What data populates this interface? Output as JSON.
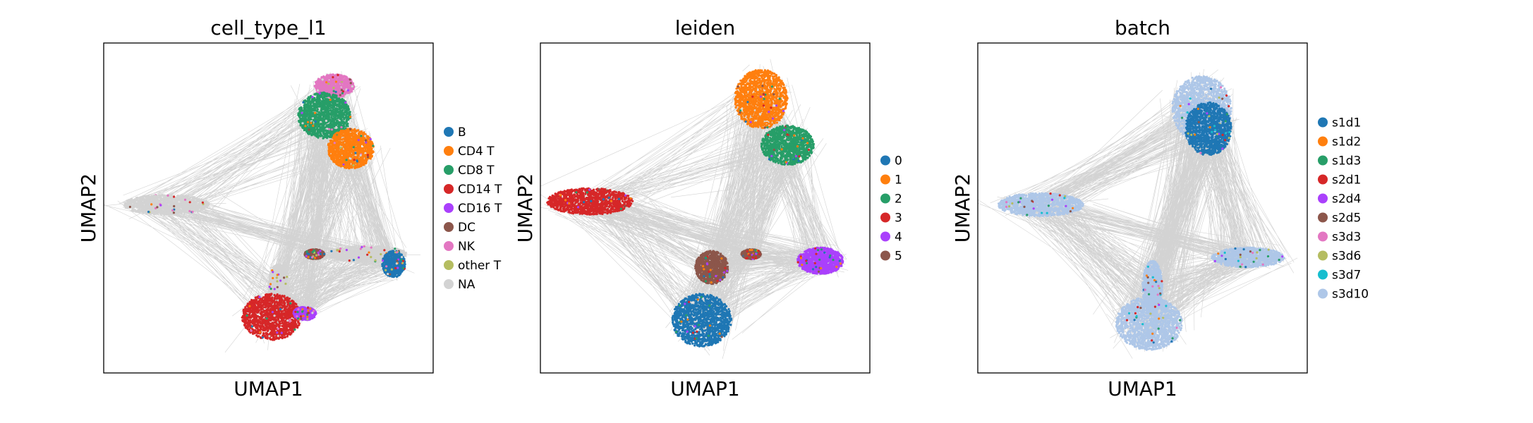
{
  "figure": {
    "layout": "three UMAP embedding panels with graph edges and categorical colouring"
  },
  "chart_data": [
    {
      "type": "scatter",
      "title": "cell_type_l1",
      "xlabel": "UMAP1",
      "ylabel": "UMAP2",
      "ticks": "none",
      "grid": false,
      "legend_position": "right",
      "edge_color": "#808080",
      "legend": [
        {
          "label": "B",
          "color": "#1f77b4"
        },
        {
          "label": "CD4 T",
          "color": "#ff7f0e"
        },
        {
          "label": "CD8 T",
          "color": "#279e68"
        },
        {
          "label": "CD14 T",
          "color": "#d62728"
        },
        {
          "label": "CD16 T",
          "color": "#aa40fc"
        },
        {
          "label": "DC",
          "color": "#8c564b"
        },
        {
          "label": "NK",
          "color": "#e377c2"
        },
        {
          "label": "other T",
          "color": "#b5bd61"
        },
        {
          "label": "NA",
          "color": "#d3d3d3"
        }
      ],
      "clusters": [
        {
          "category": "NK",
          "x": 0.7,
          "y": 0.87,
          "rx": 0.06,
          "ry": 0.035
        },
        {
          "category": "CD8 T",
          "x": 0.67,
          "y": 0.78,
          "rx": 0.08,
          "ry": 0.07
        },
        {
          "category": "CD4 T",
          "x": 0.75,
          "y": 0.68,
          "rx": 0.07,
          "ry": 0.06
        },
        {
          "category": "NA",
          "x": 0.19,
          "y": 0.51,
          "rx": 0.13,
          "ry": 0.03
        },
        {
          "category": "NA",
          "x": 0.8,
          "y": 0.36,
          "rx": 0.12,
          "ry": 0.025
        },
        {
          "category": "B",
          "x": 0.88,
          "y": 0.33,
          "rx": 0.035,
          "ry": 0.04
        },
        {
          "category": "DC",
          "x": 0.64,
          "y": 0.36,
          "rx": 0.03,
          "ry": 0.015
        },
        {
          "category": "NA",
          "x": 0.53,
          "y": 0.26,
          "rx": 0.03,
          "ry": 0.07
        },
        {
          "category": "CD14 T",
          "x": 0.51,
          "y": 0.17,
          "rx": 0.09,
          "ry": 0.07
        },
        {
          "category": "CD16 T",
          "x": 0.61,
          "y": 0.18,
          "rx": 0.035,
          "ry": 0.02
        }
      ]
    },
    {
      "type": "scatter",
      "title": "leiden",
      "xlabel": "UMAP1",
      "ylabel": "UMAP2",
      "ticks": "none",
      "grid": false,
      "legend_position": "right",
      "edge_color": "#808080",
      "legend": [
        {
          "label": "0",
          "color": "#1f77b4"
        },
        {
          "label": "1",
          "color": "#ff7f0e"
        },
        {
          "label": "2",
          "color": "#279e68"
        },
        {
          "label": "3",
          "color": "#d62728"
        },
        {
          "label": "4",
          "color": "#aa40fc"
        },
        {
          "label": "5",
          "color": "#8c564b"
        }
      ],
      "clusters": [
        {
          "category": "1",
          "x": 0.67,
          "y": 0.83,
          "rx": 0.08,
          "ry": 0.09
        },
        {
          "category": "2",
          "x": 0.75,
          "y": 0.69,
          "rx": 0.08,
          "ry": 0.06
        },
        {
          "category": "3",
          "x": 0.15,
          "y": 0.52,
          "rx": 0.13,
          "ry": 0.04
        },
        {
          "category": "5",
          "x": 0.52,
          "y": 0.32,
          "rx": 0.05,
          "ry": 0.05
        },
        {
          "category": "5",
          "x": 0.64,
          "y": 0.36,
          "rx": 0.03,
          "ry": 0.015
        },
        {
          "category": "4",
          "x": 0.85,
          "y": 0.34,
          "rx": 0.07,
          "ry": 0.04
        },
        {
          "category": "0",
          "x": 0.49,
          "y": 0.16,
          "rx": 0.09,
          "ry": 0.08
        }
      ]
    },
    {
      "type": "scatter",
      "title": "batch",
      "xlabel": "UMAP1",
      "ylabel": "UMAP2",
      "ticks": "none",
      "grid": false,
      "legend_position": "right",
      "edge_color": "#808080",
      "legend": [
        {
          "label": "s1d1",
          "color": "#1f77b4"
        },
        {
          "label": "s1d2",
          "color": "#ff7f0e"
        },
        {
          "label": "s1d3",
          "color": "#279e68"
        },
        {
          "label": "s2d1",
          "color": "#d62728"
        },
        {
          "label": "s2d4",
          "color": "#aa40fc"
        },
        {
          "label": "s2d5",
          "color": "#8c564b"
        },
        {
          "label": "s3d3",
          "color": "#e377c2"
        },
        {
          "label": "s3d6",
          "color": "#b5bd61"
        },
        {
          "label": "s3d7",
          "color": "#17becf"
        },
        {
          "label": "s3d10",
          "color": "#aec7e8"
        }
      ],
      "clusters": [
        {
          "category": "s3d10",
          "x": 0.68,
          "y": 0.8,
          "rx": 0.09,
          "ry": 0.1
        },
        {
          "category": "s1d1",
          "x": 0.7,
          "y": 0.74,
          "rx": 0.07,
          "ry": 0.08
        },
        {
          "category": "s3d10",
          "x": 0.19,
          "y": 0.51,
          "rx": 0.13,
          "ry": 0.035
        },
        {
          "category": "s3d10",
          "x": 0.82,
          "y": 0.35,
          "rx": 0.11,
          "ry": 0.03
        },
        {
          "category": "s3d10",
          "x": 0.53,
          "y": 0.26,
          "rx": 0.03,
          "ry": 0.08
        },
        {
          "category": "s3d10",
          "x": 0.52,
          "y": 0.15,
          "rx": 0.1,
          "ry": 0.08
        }
      ]
    }
  ]
}
